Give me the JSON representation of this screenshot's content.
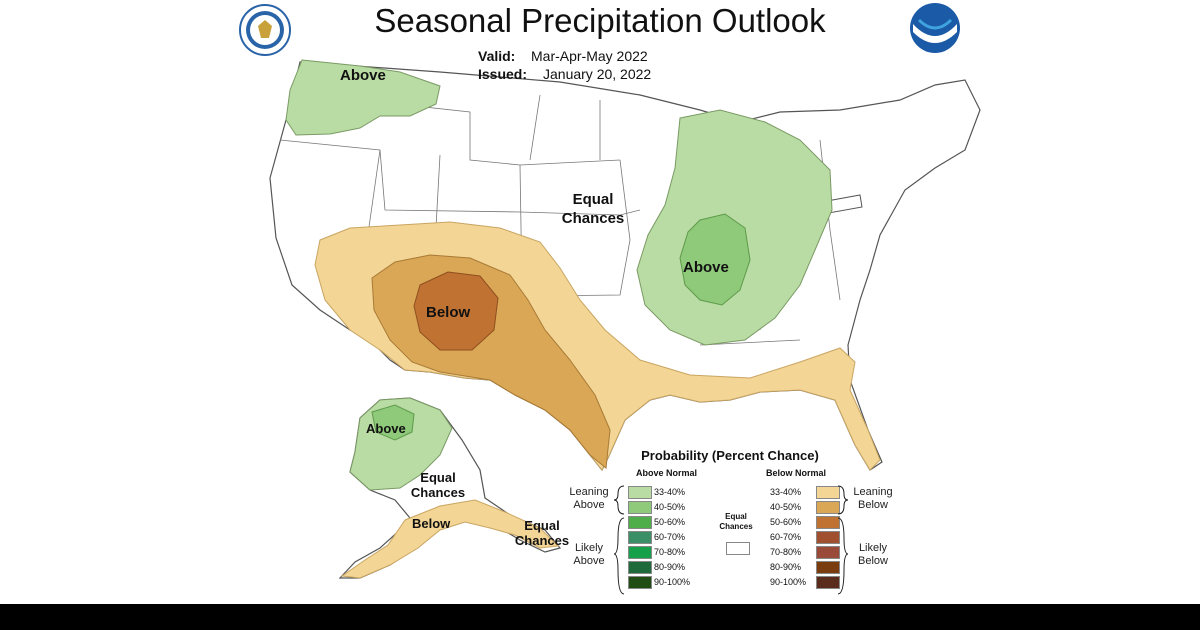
{
  "header": {
    "title": "Seasonal Precipitation Outlook",
    "valid_label": "Valid:",
    "valid_value": "Mar-Apr-May 2022",
    "issued_label": "Issued:",
    "issued_value": "January 20, 2022"
  },
  "logos": {
    "left": "commerce-seal",
    "right": "noaa-logo"
  },
  "map_labels": {
    "pacific_nw": "Above",
    "central": "Equal Chances",
    "midwest": "Above",
    "southwest": "Below",
    "alaska_west": "Above",
    "alaska_central": "Equal Chances",
    "alaska_south": "Below",
    "alaska_east": "Equal Chances"
  },
  "legend": {
    "title": "Probability (Percent Chance)",
    "above_header": "Above Normal",
    "below_header": "Below Normal",
    "leaning_above": "Leaning Above",
    "likely_above": "Likely Above",
    "leaning_below": "Leaning Below",
    "likely_below": "Likely Below",
    "equal_chances": "Equal Chances",
    "above": [
      {
        "label": "33-40%",
        "color": "#b9dca4"
      },
      {
        "label": "40-50%",
        "color": "#8fc97a"
      },
      {
        "label": "50-60%",
        "color": "#4fae4a"
      },
      {
        "label": "60-70%",
        "color": "#3a8f67"
      },
      {
        "label": "70-80%",
        "color": "#16a049"
      },
      {
        "label": "80-90%",
        "color": "#1f6a3a"
      },
      {
        "label": "90-100%",
        "color": "#1f4d13"
      }
    ],
    "below": [
      {
        "label": "33-40%",
        "color": "#f3d595"
      },
      {
        "label": "40-50%",
        "color": "#d9a756"
      },
      {
        "label": "50-60%",
        "color": "#c07232"
      },
      {
        "label": "60-70%",
        "color": "#a1502f"
      },
      {
        "label": "70-80%",
        "color": "#9a4a38"
      },
      {
        "label": "80-90%",
        "color": "#7a3d10"
      },
      {
        "label": "90-100%",
        "color": "#5a2c1c"
      }
    ]
  },
  "colors": {
    "above_33_40": "#b9dca4",
    "above_40_50": "#8fc97a",
    "below_33_40": "#f3d595",
    "below_40_50": "#d9a756",
    "below_50_60": "#c07232",
    "land": "#ffffff",
    "border": "#555555"
  }
}
